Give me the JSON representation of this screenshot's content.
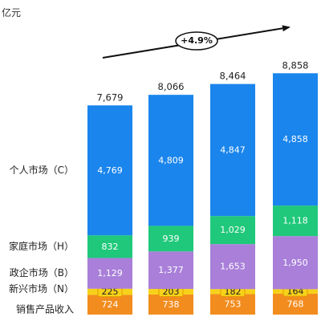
{
  "unit_label": "亿元",
  "chart_data": {
    "type": "bar",
    "stacked": true,
    "title": "",
    "xlabel": "",
    "ylabel": "亿元",
    "categories": [
      "",
      "",
      "",
      ""
    ],
    "totals": [
      7679,
      8066,
      8464,
      8858
    ],
    "total_labels": [
      "7,679",
      "8,066",
      "8,464",
      "8,858"
    ],
    "series": [
      {
        "name": "销售产品收入",
        "color": "#f28c1e",
        "values": [
          724,
          738,
          753,
          768
        ],
        "labels": [
          "724",
          "738",
          "753",
          "768"
        ],
        "label_color": "#ffffff"
      },
      {
        "name": "新兴市场（N）",
        "color": "#f7d21a",
        "values": [
          225,
          203,
          182,
          164
        ],
        "labels": [
          "225",
          "203",
          "182",
          "164"
        ],
        "label_color": "#222222"
      },
      {
        "name": "政企市场（B）",
        "color": "#a97fd9",
        "values": [
          1129,
          1377,
          1653,
          1950
        ],
        "labels": [
          "1,129",
          "1,377",
          "1,653",
          "1,950"
        ],
        "label_color": "#ffffff"
      },
      {
        "name": "家庭市场（H）",
        "color": "#1fc87a",
        "values": [
          832,
          939,
          1029,
          1118
        ],
        "labels": [
          "832",
          "939",
          "1,029",
          "1,118"
        ],
        "label_color": "#ffffff"
      },
      {
        "name": "个人市场（C）",
        "color": "#1a85ec",
        "values": [
          4769,
          4809,
          4847,
          4858
        ],
        "labels": [
          "4,769",
          "4,809",
          "4,847",
          "4,858"
        ],
        "label_color": "#ffffff"
      }
    ],
    "cagr_label": "+4.9%"
  }
}
